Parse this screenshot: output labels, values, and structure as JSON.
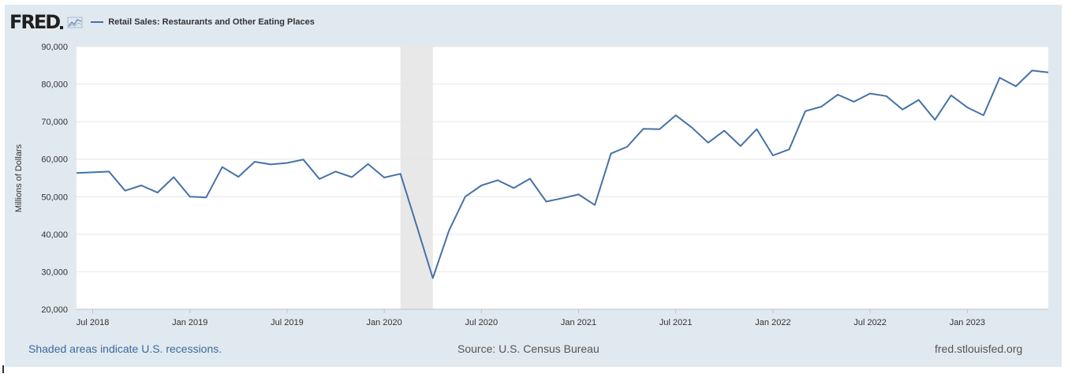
{
  "header": {
    "logo_text": "FRED",
    "logo_icon": "line-chart-icon",
    "legend_label": "Retail Sales: Restaurants and Other Eating Places"
  },
  "footer": {
    "note": "Shaded areas indicate U.S. recessions.",
    "source": "Source: U.S. Census Bureau",
    "site": "fred.stlouisfed.org"
  },
  "colors": {
    "series": "#4572a7",
    "background": "#e1e9f0",
    "plot": "#ffffff",
    "recession": "#e8e8e8",
    "footer_link": "#3b6a9e"
  },
  "chart_data": {
    "type": "line",
    "title": "",
    "xlabel": "",
    "ylabel": "Millions of Dollars",
    "ylim": [
      20000,
      90000
    ],
    "yticks": [
      20000,
      30000,
      40000,
      50000,
      60000,
      70000,
      80000,
      90000
    ],
    "ytick_labels": [
      "20,000",
      "30,000",
      "40,000",
      "50,000",
      "60,000",
      "70,000",
      "80,000",
      "90,000"
    ],
    "xlim": [
      "2018-06",
      "2023-06"
    ],
    "xticks": [
      "2018-07",
      "2019-01",
      "2019-07",
      "2020-01",
      "2020-07",
      "2021-01",
      "2021-07",
      "2022-01",
      "2022-07",
      "2023-01"
    ],
    "xtick_labels": [
      "Jul 2018",
      "Jan 2019",
      "Jul 2019",
      "Jan 2020",
      "Jul 2020",
      "Jan 2021",
      "Jul 2021",
      "Jan 2022",
      "Jul 2022",
      "Jan 2023"
    ],
    "grid": true,
    "recessions": [
      {
        "start": "2020-02",
        "end": "2020-04"
      }
    ],
    "series": [
      {
        "name": "Retail Sales: Restaurants and Other Eating Places",
        "color": "#4572a7",
        "x": [
          "2018-06",
          "2018-07",
          "2018-08",
          "2018-09",
          "2018-10",
          "2018-11",
          "2018-12",
          "2019-01",
          "2019-02",
          "2019-03",
          "2019-04",
          "2019-05",
          "2019-06",
          "2019-07",
          "2019-08",
          "2019-09",
          "2019-10",
          "2019-11",
          "2019-12",
          "2020-01",
          "2020-02",
          "2020-03",
          "2020-04",
          "2020-05",
          "2020-06",
          "2020-07",
          "2020-08",
          "2020-09",
          "2020-10",
          "2020-11",
          "2020-12",
          "2021-01",
          "2021-02",
          "2021-03",
          "2021-04",
          "2021-05",
          "2021-06",
          "2021-07",
          "2021-08",
          "2021-09",
          "2021-10",
          "2021-11",
          "2021-12",
          "2022-01",
          "2022-02",
          "2022-03",
          "2022-04",
          "2022-05",
          "2022-06",
          "2022-07",
          "2022-08",
          "2022-09",
          "2022-10",
          "2022-11",
          "2022-12",
          "2023-01",
          "2023-02",
          "2023-03",
          "2023-04",
          "2023-05",
          "2023-06"
        ],
        "y": [
          56300,
          56500,
          56700,
          51600,
          53000,
          51100,
          55200,
          50000,
          49800,
          57900,
          55300,
          59300,
          58600,
          59000,
          59900,
          54700,
          56700,
          55200,
          58700,
          55100,
          56100,
          42300,
          28300,
          41000,
          50000,
          53000,
          54400,
          52300,
          54800,
          48700,
          49600,
          50600,
          47800,
          61500,
          63300,
          68100,
          68000,
          71700,
          68400,
          64400,
          67600,
          63500,
          68000,
          61000,
          62600,
          72800,
          74000,
          77200,
          75300,
          77500,
          76800,
          73200,
          75800,
          70500,
          77000,
          73800,
          71700,
          81700,
          79400,
          83600,
          83100
        ]
      }
    ]
  }
}
